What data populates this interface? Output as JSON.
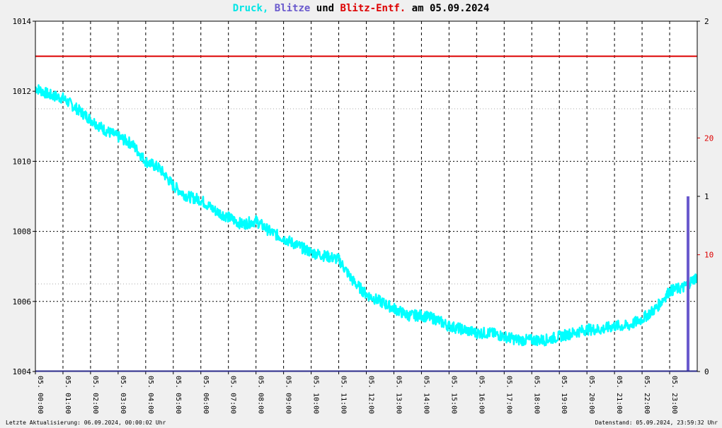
{
  "title": {
    "druck": "Druck,",
    "blitze": "Blitze",
    "und": "und",
    "entf": "Blitz-Entf.",
    "am": "am 05.09.2024"
  },
  "footer": {
    "left": "Letzte Aktualisierung: 06.09.2024, 00:00:02 Uhr",
    "right": "Datenstand: 05.09.2024, 23:59:32 Uhr"
  },
  "colors": {
    "druck": "#00ffff",
    "blitze": "#6a5acd",
    "entf": "#dd0000",
    "axis": "#000000",
    "background": "#ffffff"
  },
  "chart_data": {
    "type": "line",
    "date": "05.09.2024",
    "x_tick_labels": [
      "05. 00:00",
      "05. 01:00",
      "05. 02:00",
      "05. 03:00",
      "05. 04:00",
      "05. 05:00",
      "05. 06:00",
      "05. 07:00",
      "05. 08:00",
      "05. 09:00",
      "05. 10:00",
      "05. 11:00",
      "05. 12:00",
      "05. 13:00",
      "05. 14:00",
      "05. 15:00",
      "05. 16:00",
      "05. 17:00",
      "05. 18:00",
      "05. 19:00",
      "05. 20:00",
      "05. 21:00",
      "05. 22:00",
      "05. 23:00"
    ],
    "xlim": [
      "05.09.2024 00:00",
      "05.09.2024 24:00"
    ],
    "y_left": {
      "ylim": [
        1004,
        1014
      ],
      "ticks": [
        "1004",
        "1006",
        "1008",
        "1010",
        "1012",
        "1014"
      ]
    },
    "y_right_blitze": {
      "ylim": [
        0,
        2
      ],
      "ticks": [
        "0",
        "1",
        "2"
      ]
    },
    "y_right_entf": {
      "ylim": [
        0,
        30
      ],
      "ticks": [
        "10",
        "20"
      ]
    },
    "grid": true,
    "series": [
      {
        "name": "Druck",
        "axis": "left",
        "x": [
          "00:00",
          "00:30",
          "01:00",
          "01:30",
          "02:00",
          "02:30",
          "03:00",
          "03:30",
          "04:00",
          "04:30",
          "05:00",
          "05:30",
          "06:00",
          "06:30",
          "07:00",
          "07:30",
          "08:00",
          "08:30",
          "09:00",
          "09:30",
          "10:00",
          "10:30",
          "11:00",
          "11:30",
          "12:00",
          "12:30",
          "13:00",
          "13:30",
          "14:00",
          "14:30",
          "15:00",
          "15:30",
          "16:00",
          "16:30",
          "17:00",
          "17:30",
          "18:00",
          "18:30",
          "19:00",
          "19:30",
          "20:00",
          "20:30",
          "21:00",
          "21:30",
          "22:00",
          "22:30",
          "23:00",
          "23:30",
          "23:59"
        ],
        "values": [
          1012.1,
          1011.9,
          1011.8,
          1011.5,
          1011.2,
          1010.9,
          1010.7,
          1010.5,
          1010.0,
          1009.8,
          1009.3,
          1009.0,
          1008.9,
          1008.6,
          1008.4,
          1008.2,
          1008.3,
          1008.0,
          1007.8,
          1007.6,
          1007.4,
          1007.3,
          1007.2,
          1006.6,
          1006.2,
          1006.0,
          1005.8,
          1005.6,
          1005.6,
          1005.5,
          1005.3,
          1005.2,
          1005.1,
          1005.1,
          1005.0,
          1004.9,
          1004.9,
          1004.9,
          1005.0,
          1005.1,
          1005.2,
          1005.2,
          1005.3,
          1005.3,
          1005.5,
          1005.8,
          1006.3,
          1006.4,
          1006.7
        ]
      },
      {
        "name": "Blitze",
        "axis": "right",
        "x": [
          "23:40"
        ],
        "values": [
          1
        ]
      },
      {
        "name": "Blitz-Entf.",
        "axis": "right_entf",
        "x": [
          "00:00",
          "23:59"
        ],
        "values": [
          27,
          27
        ]
      }
    ]
  }
}
